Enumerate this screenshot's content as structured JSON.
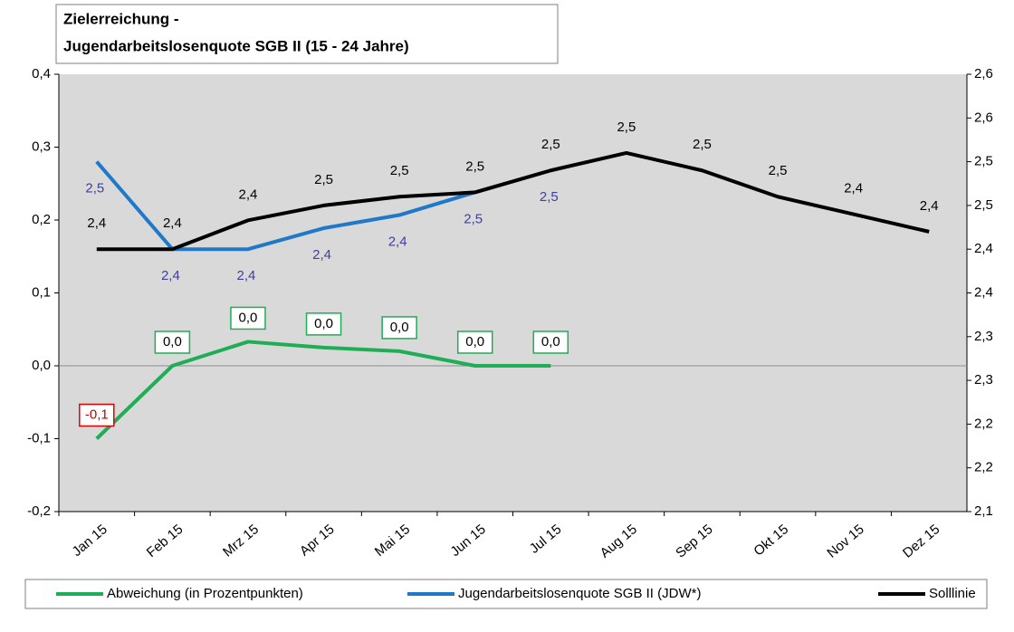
{
  "chart_data": {
    "type": "line",
    "title": [
      "Zielerreichung -",
      "Jugendarbeitslosenquote SGB II (15 - 24 Jahre)"
    ],
    "categories": [
      "Jan 15",
      "Feb 15",
      "Mrz 15",
      "Apr 15",
      "Mai 15",
      "Jun 15",
      "Jul 15",
      "Aug 15",
      "Sep 15",
      "Okt 15",
      "Nov 15",
      "Dez 15"
    ],
    "ylim": [
      -0.2,
      0.4
    ],
    "yticks": [
      {
        "value": -0.2,
        "label": "-0,2"
      },
      {
        "value": -0.1,
        "label": "-0,1"
      },
      {
        "value": 0,
        "label": "0,0"
      },
      {
        "value": 0.1,
        "label": "0,1"
      },
      {
        "value": 0.2,
        "label": "0,2"
      },
      {
        "value": 0.3,
        "label": "0,3"
      },
      {
        "value": 0.4,
        "label": "0,4"
      }
    ],
    "y2lim": [
      2.1,
      2.6
    ],
    "y2ticks": [
      {
        "value": 2.1,
        "label": "2,1"
      },
      {
        "value": 2.15,
        "label": "2,2"
      },
      {
        "value": 2.2,
        "label": "2,2"
      },
      {
        "value": 2.25,
        "label": "2,3"
      },
      {
        "value": 2.3,
        "label": "2,3"
      },
      {
        "value": 2.35,
        "label": "2,4"
      },
      {
        "value": 2.4,
        "label": "2,4"
      },
      {
        "value": 2.45,
        "label": "2,5"
      },
      {
        "value": 2.5,
        "label": "2,5"
      },
      {
        "value": 2.55,
        "label": "2,6"
      },
      {
        "value": 2.6,
        "label": "2,6"
      }
    ],
    "series": [
      {
        "name": "Abweichung (in Prozentpunkten)",
        "color": "#1fad55",
        "axis": "y",
        "values": [
          -0.1,
          0.0,
          0.033,
          0.025,
          0.02,
          0.0,
          0.0,
          null,
          null,
          null,
          null,
          null
        ],
        "value_labels": [
          "-0,1",
          "0,0",
          "0,0",
          "0,0",
          "0,0",
          "0,0",
          "0,0",
          null,
          null,
          null,
          null,
          null
        ]
      },
      {
        "name": "Jugendarbeitslosenquote SGB II (JDW*)",
        "color": "#1f78c8",
        "axis": "y2",
        "values": [
          2.5,
          2.4,
          2.4,
          2.424,
          2.439,
          2.465,
          2.49,
          null,
          null,
          null,
          null,
          null
        ],
        "value_labels": [
          "2,5",
          "2,4",
          "2,4",
          "2,4",
          "2,4",
          "2,5",
          "2,5",
          null,
          null,
          null,
          null,
          null
        ]
      },
      {
        "name": "Solllinie",
        "color": "#000000",
        "axis": "y2",
        "values": [
          2.4,
          2.4,
          2.433,
          2.45,
          2.46,
          2.465,
          2.49,
          2.51,
          2.49,
          2.46,
          2.44,
          2.42
        ],
        "value_labels": [
          "2,4",
          "2,4",
          "2,4",
          "2,5",
          "2,5",
          "2,5",
          "2,5",
          "2,5",
          "2,5",
          "2,5",
          "2,4",
          "2,4"
        ]
      }
    ]
  }
}
